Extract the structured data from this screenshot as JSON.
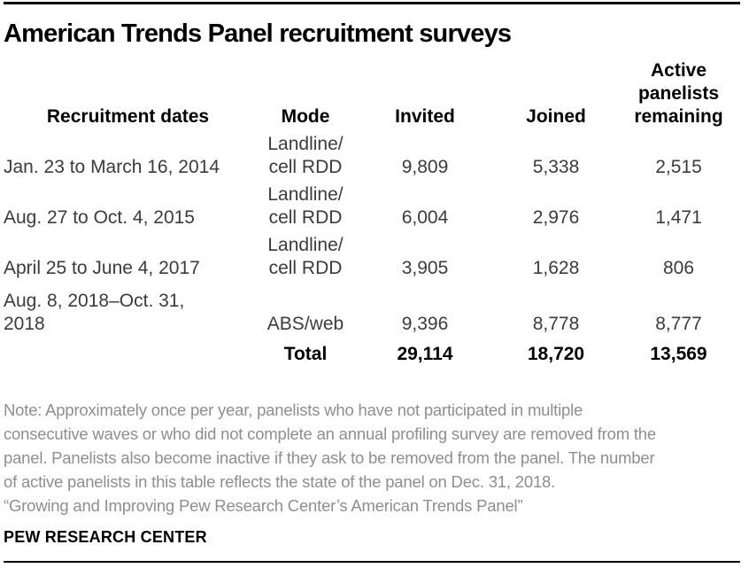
{
  "title": "American Trends Panel recruitment surveys",
  "table": {
    "col_headers": {
      "dates": "Recruitment dates",
      "mode": "Mode",
      "invited": "Invited",
      "joined": "Joined",
      "active_lines": [
        "Active",
        "panelists",
        "remaining"
      ]
    },
    "rows": [
      {
        "date_lines": [
          "Jan. 23 to March 16, 2014"
        ],
        "mode_lines": [
          "Landline/",
          "cell RDD"
        ],
        "invited": "9,809",
        "joined": "5,338",
        "active": "2,515"
      },
      {
        "date_lines": [
          "Aug. 27 to Oct. 4, 2015"
        ],
        "mode_lines": [
          "Landline/",
          "cell RDD"
        ],
        "invited": "6,004",
        "joined": "2,976",
        "active": "1,471"
      },
      {
        "date_lines": [
          "April 25 to June 4, 2017"
        ],
        "mode_lines": [
          "Landline/",
          "cell RDD"
        ],
        "invited": "3,905",
        "joined": "1,628",
        "active": "806"
      },
      {
        "date_lines": [
          "Aug. 8, 2018–Oct. 31,",
          "2018"
        ],
        "mode_lines": [
          "ABS/web"
        ],
        "invited": "9,396",
        "joined": "8,778",
        "active": "8,777"
      }
    ],
    "total": {
      "label": "Total",
      "invited": "29,114",
      "joined": "18,720",
      "active": "13,569"
    }
  },
  "note_lines": [
    "Note: Approximately once per year, panelists who have not participated in multiple",
    "consecutive waves or who did not complete an annual profiling survey are removed from the",
    "panel. Panelists also become inactive if they ask to be removed from the panel. The number",
    "of active panelists in this table reflects the state of the panel on Dec. 31, 2018."
  ],
  "source_line": "“Growing and Improving Pew Research Center’s American Trends Panel”",
  "footer": "PEW RESEARCH CENTER",
  "colors": {
    "top_bar": "#000000",
    "bottom_rule": "#000000",
    "title_text": "#000000",
    "body_text": "#3b3b3b",
    "note_text": "#8e8e8e"
  }
}
